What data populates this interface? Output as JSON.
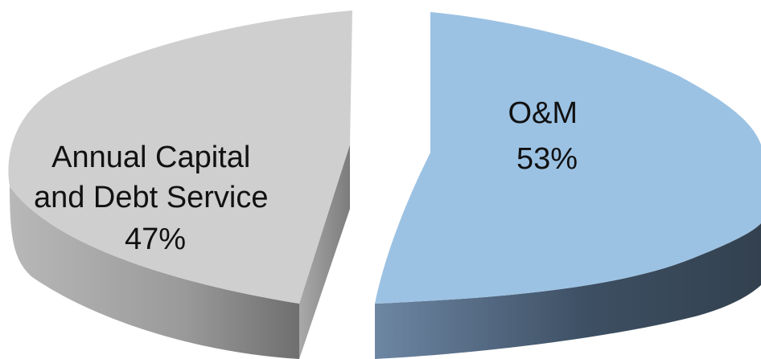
{
  "chart_data": {
    "type": "pie",
    "style": "3d-exploded",
    "slices": [
      {
        "label": "O&M",
        "value": 53,
        "percent_label": "53%",
        "top_color": "#9cc2e3",
        "side_color": "#3f5166"
      },
      {
        "label": "Annual Capital and Debt Service",
        "label_lines": [
          "Annual Capital",
          "and Debt Service"
        ],
        "value": 47,
        "percent_label": "47%",
        "top_color": "#cfcfcf",
        "side_color": "#8a8a8a"
      }
    ]
  }
}
